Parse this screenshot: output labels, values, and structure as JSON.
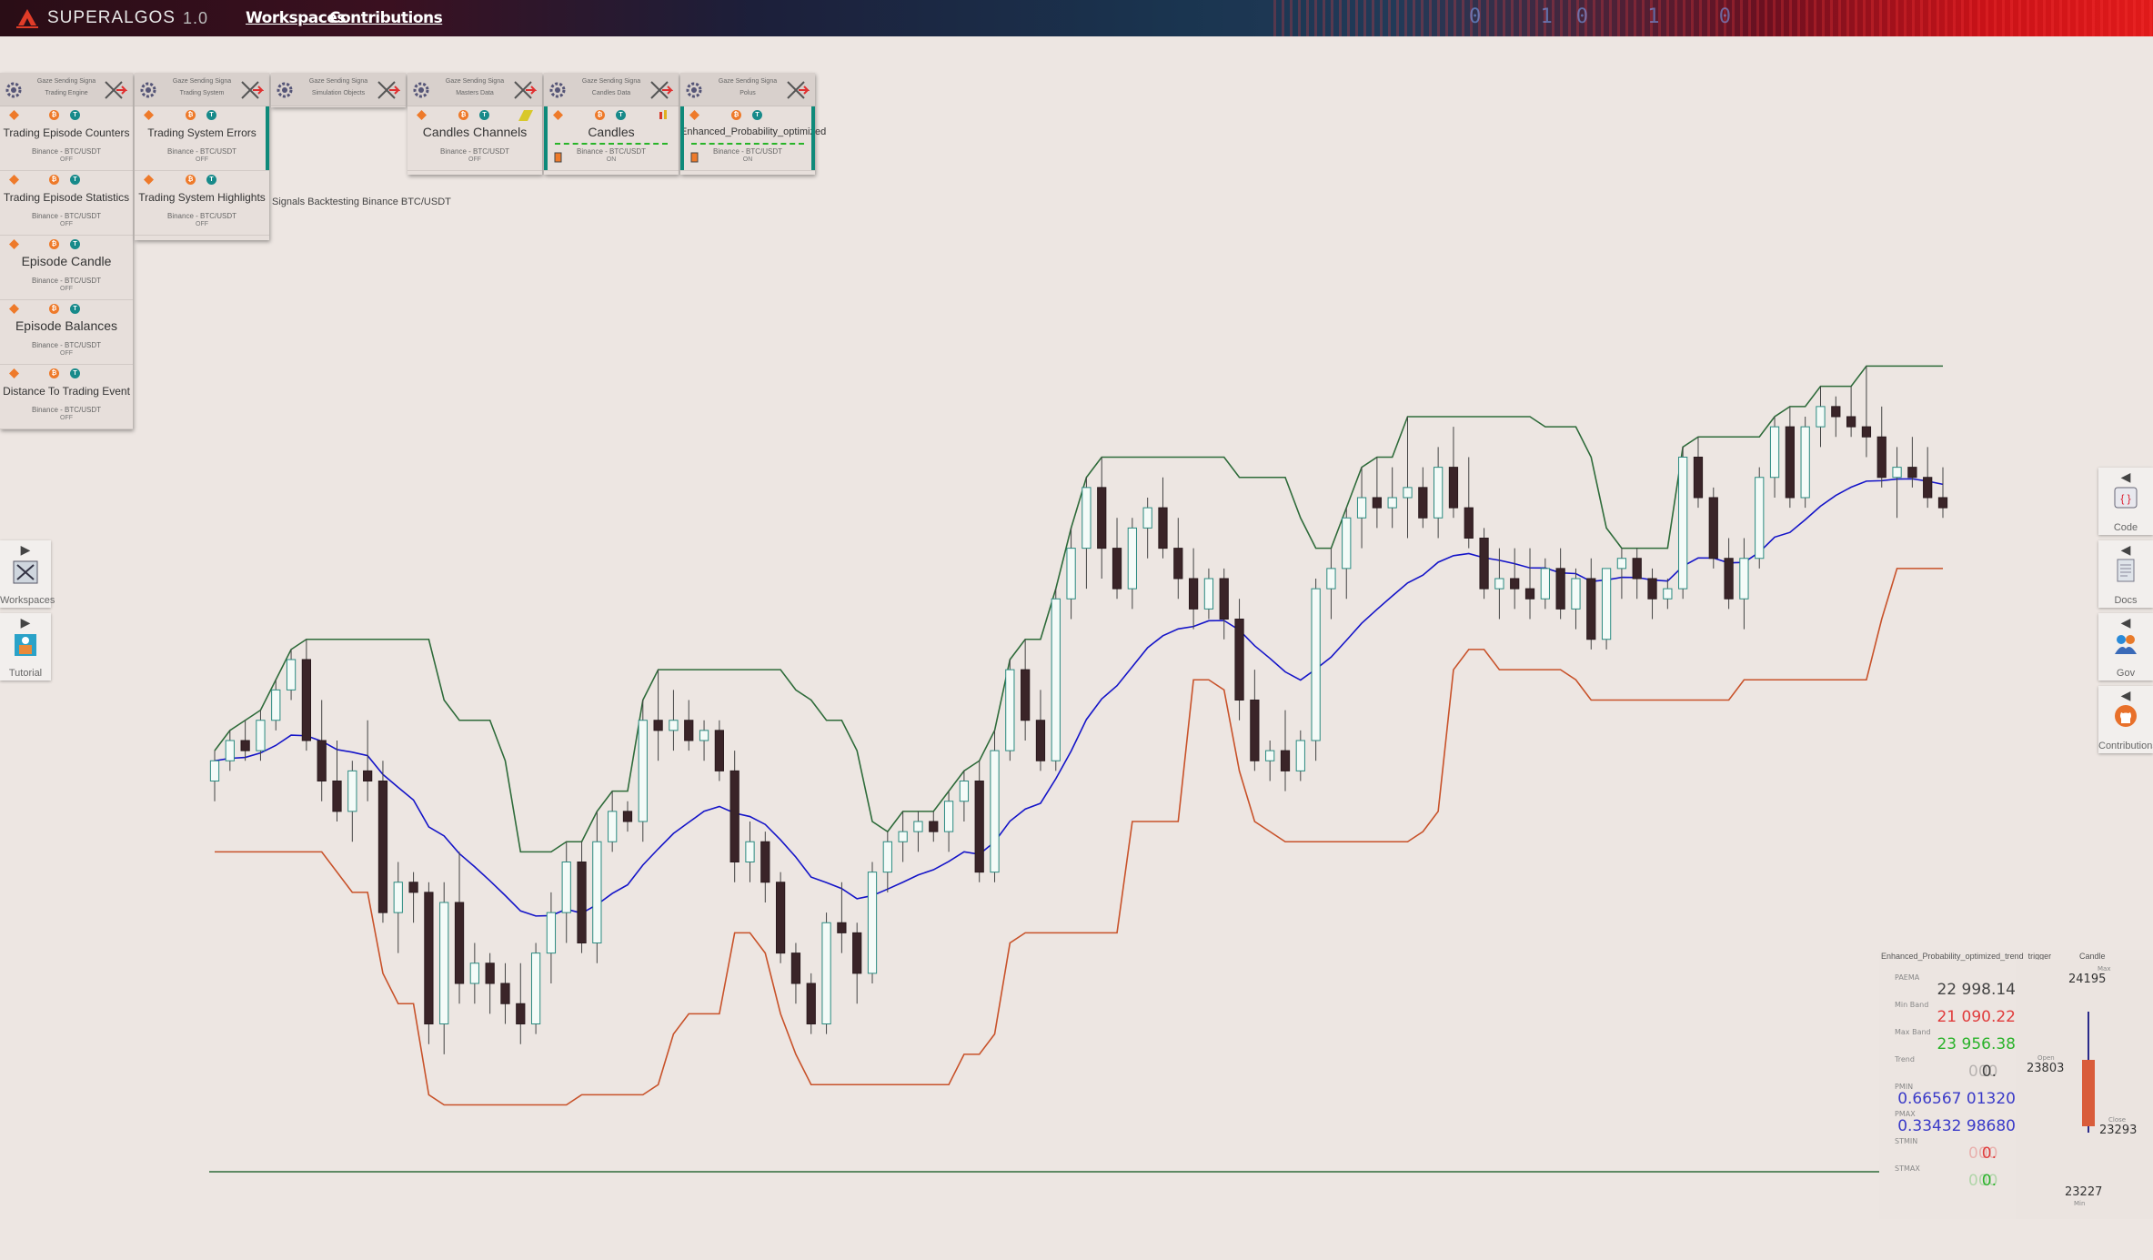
{
  "app": {
    "brand": "SUPERALGOS",
    "version": "1.0",
    "nav": [
      "Workspaces",
      "Contributions"
    ],
    "binary_text": "0 10 1 0"
  },
  "panels": [
    {
      "title_line1": "Gaze Sending Signa",
      "title_line2": "Trading Engine",
      "layers": [
        {
          "name": "Trading Episode Counters",
          "market": "Binance - BTC/USDT",
          "status": "OFF"
        },
        {
          "name": "Trading Episode Statistics",
          "market": "Binance - BTC/USDT",
          "status": "OFF"
        },
        {
          "name": "Episode Candle",
          "market": "Binance - BTC/USDT",
          "status": "OFF"
        },
        {
          "name": "Episode Balances",
          "market": "Binance - BTC/USDT",
          "status": "OFF"
        },
        {
          "name": "Distance To Trading Event",
          "market": "Binance - BTC/USDT",
          "status": "OFF"
        }
      ]
    },
    {
      "title_line1": "Gaze Sending Signa",
      "title_line2": "Trading System",
      "layers": [
        {
          "name": "Trading System Errors",
          "market": "Binance - BTC/USDT",
          "status": "OFF"
        },
        {
          "name": "Trading System Highlights",
          "market": "Binance - BTC/USDT",
          "status": "OFF"
        }
      ]
    },
    {
      "title_line1": "Gaze Sending Signa",
      "title_line2": "Simulation Objects",
      "layers": []
    },
    {
      "title_line1": "Gaze Sending Signa",
      "title_line2": "Masters Data",
      "layers": [
        {
          "name": "Candles Channels",
          "market": "Binance - BTC/USDT",
          "status": "OFF"
        }
      ]
    },
    {
      "title_line1": "Gaze Sending Signa",
      "title_line2": "Candles Data",
      "layers": [
        {
          "name": "Candles",
          "market": "Binance - BTC/USDT",
          "status": "ON"
        }
      ]
    },
    {
      "title_line1": "Gaze Sending Signa",
      "title_line2": "Polus",
      "layers": [
        {
          "name": "Enhanced_Probability_optimized",
          "market": "Binance - BTC/USDT",
          "status": "ON"
        }
      ]
    }
  ],
  "chart_title": "Signals Backtesting Binance BTC/USDT",
  "left_toolbar": [
    {
      "label": "Workspaces"
    },
    {
      "label": "Tutorial"
    }
  ],
  "right_toolbar": [
    {
      "label": "Code"
    },
    {
      "label": "Docs"
    },
    {
      "label": "Gov"
    },
    {
      "label": "Contributions"
    }
  ],
  "readout": {
    "indicator_title": "Enhanced_Probability_optimized_trend_trigger",
    "candle_title": "Candle",
    "rows": [
      {
        "label": "PAEMA",
        "value": "22 998.14",
        "color": "#444444"
      },
      {
        "label": "Min Band",
        "value": "21 090.22",
        "color": "#e03c3c"
      },
      {
        "label": "Max Band",
        "value": "23 956.38",
        "color": "#2ab22a"
      },
      {
        "label": "Trend",
        "value": "0.",
        "faded": "000",
        "color": "#444444"
      },
      {
        "label": "PMIN",
        "value": "0.66567 01320",
        "color": "#3a3ac8"
      },
      {
        "label": "PMAX",
        "value": "0.33432 98680",
        "color": "#3a3ac8"
      },
      {
        "label": "STMIN",
        "value": "0.",
        "faded": "000",
        "color": "#e03c3c"
      },
      {
        "label": "STMAX",
        "value": "0.",
        "faded": "000",
        "color": "#2ab22a"
      }
    ],
    "candle": {
      "max_label": "Max",
      "max": "24195",
      "open_label": "Open",
      "open": "23803",
      "close_label": "Close",
      "close": "23293",
      "min_label": "Min",
      "min": "23227"
    }
  },
  "chart_data": {
    "type": "candlestick",
    "title": "Signals Backtesting Binance BTC/USDT",
    "price_range": [
      20400,
      24400
    ],
    "candles": [
      [
        21800,
        21950,
        21700,
        21900
      ],
      [
        21900,
        22050,
        21850,
        22000
      ],
      [
        22000,
        22100,
        21900,
        21950
      ],
      [
        21950,
        22150,
        21900,
        22100
      ],
      [
        22100,
        22300,
        22050,
        22250
      ],
      [
        22250,
        22450,
        22200,
        22400
      ],
      [
        22400,
        22500,
        21950,
        22000
      ],
      [
        22000,
        22200,
        21700,
        21800
      ],
      [
        21800,
        22000,
        21600,
        21650
      ],
      [
        21650,
        21900,
        21500,
        21850
      ],
      [
        21850,
        22100,
        21700,
        21800
      ],
      [
        21800,
        21900,
        21100,
        21150
      ],
      [
        21150,
        21400,
        20950,
        21300
      ],
      [
        21300,
        21350,
        21100,
        21250
      ],
      [
        21250,
        21300,
        20500,
        20600
      ],
      [
        20600,
        21300,
        20450,
        21200
      ],
      [
        21200,
        21450,
        20700,
        20800
      ],
      [
        20800,
        21000,
        20700,
        20900
      ],
      [
        20900,
        20950,
        20650,
        20800
      ],
      [
        20800,
        20900,
        20600,
        20700
      ],
      [
        20700,
        20900,
        20500,
        20600
      ],
      [
        20600,
        21000,
        20550,
        20950
      ],
      [
        20950,
        21250,
        20800,
        21150
      ],
      [
        21150,
        21500,
        21000,
        21400
      ],
      [
        21400,
        21500,
        20950,
        21000
      ],
      [
        21000,
        21650,
        20900,
        21500
      ],
      [
        21500,
        21750,
        21450,
        21650
      ],
      [
        21650,
        21700,
        21550,
        21600
      ],
      [
        21600,
        22200,
        21500,
        22100
      ],
      [
        22100,
        22350,
        21900,
        22050
      ],
      [
        22050,
        22250,
        21950,
        22100
      ],
      [
        22100,
        22200,
        21950,
        22000
      ],
      [
        22000,
        22100,
        21900,
        22050
      ],
      [
        22050,
        22100,
        21800,
        21850
      ],
      [
        21850,
        21950,
        21300,
        21400
      ],
      [
        21400,
        21600,
        21300,
        21500
      ],
      [
        21500,
        21550,
        21200,
        21300
      ],
      [
        21300,
        21350,
        20900,
        20950
      ],
      [
        20950,
        21000,
        20700,
        20800
      ],
      [
        20800,
        20850,
        20550,
        20600
      ],
      [
        20600,
        21150,
        20550,
        21100
      ],
      [
        21100,
        21300,
        20950,
        21050
      ],
      [
        21050,
        21100,
        20700,
        20850
      ],
      [
        20850,
        21400,
        20800,
        21350
      ],
      [
        21350,
        21550,
        21250,
        21500
      ],
      [
        21500,
        21650,
        21400,
        21550
      ],
      [
        21550,
        21650,
        21450,
        21600
      ],
      [
        21600,
        21650,
        21500,
        21550
      ],
      [
        21550,
        21750,
        21450,
        21700
      ],
      [
        21700,
        21850,
        21600,
        21800
      ],
      [
        21800,
        21900,
        21300,
        21350
      ],
      [
        21350,
        22050,
        21300,
        21950
      ],
      [
        21950,
        22400,
        21900,
        22350
      ],
      [
        22350,
        22500,
        22000,
        22100
      ],
      [
        22100,
        22250,
        21850,
        21900
      ],
      [
        21900,
        22750,
        21850,
        22700
      ],
      [
        22700,
        23050,
        22600,
        22950
      ],
      [
        22950,
        23300,
        22750,
        23250
      ],
      [
        23250,
        23400,
        22800,
        22950
      ],
      [
        22950,
        23100,
        22700,
        22750
      ],
      [
        22750,
        23100,
        22650,
        23050
      ],
      [
        23050,
        23200,
        22900,
        23150
      ],
      [
        23150,
        23300,
        22900,
        22950
      ],
      [
        22950,
        23100,
        22700,
        22800
      ],
      [
        22800,
        22950,
        22550,
        22650
      ],
      [
        22650,
        22850,
        22600,
        22800
      ],
      [
        22800,
        22850,
        22500,
        22600
      ],
      [
        22600,
        22700,
        22100,
        22200
      ],
      [
        22200,
        22350,
        21850,
        21900
      ],
      [
        21900,
        22000,
        21800,
        21950
      ],
      [
        21950,
        22150,
        21750,
        21850
      ],
      [
        21850,
        22050,
        21800,
        22000
      ],
      [
        22000,
        22800,
        21900,
        22750
      ],
      [
        22750,
        22950,
        22600,
        22850
      ],
      [
        22850,
        23150,
        22700,
        23100
      ],
      [
        23100,
        23350,
        22950,
        23200
      ],
      [
        23200,
        23400,
        23050,
        23150
      ],
      [
        23150,
        23350,
        23050,
        23200
      ],
      [
        23200,
        23600,
        23000,
        23250
      ],
      [
        23250,
        23350,
        23050,
        23100
      ],
      [
        23100,
        23450,
        23000,
        23350
      ],
      [
        23350,
        23550,
        23100,
        23150
      ],
      [
        23150,
        23400,
        22950,
        23000
      ],
      [
        23000,
        23050,
        22700,
        22750
      ],
      [
        22750,
        22950,
        22600,
        22800
      ],
      [
        22800,
        22950,
        22650,
        22750
      ],
      [
        22750,
        22950,
        22600,
        22700
      ],
      [
        22700,
        22900,
        22650,
        22850
      ],
      [
        22850,
        22950,
        22600,
        22650
      ],
      [
        22650,
        22850,
        22550,
        22800
      ],
      [
        22800,
        22900,
        22450,
        22500
      ],
      [
        22500,
        22850,
        22450,
        22850
      ],
      [
        22850,
        22950,
        22700,
        22900
      ],
      [
        22900,
        22950,
        22700,
        22800
      ],
      [
        22800,
        22850,
        22600,
        22700
      ],
      [
        22700,
        22800,
        22650,
        22750
      ],
      [
        22750,
        23450,
        22700,
        23400
      ],
      [
        23400,
        23500,
        23150,
        23200
      ],
      [
        23200,
        23250,
        22850,
        22900
      ],
      [
        22900,
        23000,
        22650,
        22700
      ],
      [
        22700,
        23000,
        22550,
        22900
      ],
      [
        22900,
        23350,
        22850,
        23300
      ],
      [
        23300,
        23600,
        23200,
        23550
      ],
      [
        23550,
        23650,
        23150,
        23200
      ],
      [
        23200,
        23600,
        23150,
        23550
      ],
      [
        23550,
        23750,
        23450,
        23650
      ],
      [
        23650,
        23700,
        23500,
        23600
      ],
      [
        23600,
        23750,
        23500,
        23550
      ],
      [
        23550,
        23850,
        23400,
        23500
      ],
      [
        23500,
        23650,
        23250,
        23300
      ],
      [
        23300,
        23450,
        23100,
        23350
      ],
      [
        23350,
        23500,
        23250,
        23300
      ],
      [
        23300,
        23450,
        23150,
        23200
      ],
      [
        23200,
        23350,
        23100,
        23150
      ]
    ],
    "series": [
      {
        "name": "Max Band",
        "color": "#2e6b3a"
      },
      {
        "name": "PAEMA",
        "color": "#1414c8"
      },
      {
        "name": "Min Band",
        "color": "#c8522a"
      }
    ]
  }
}
